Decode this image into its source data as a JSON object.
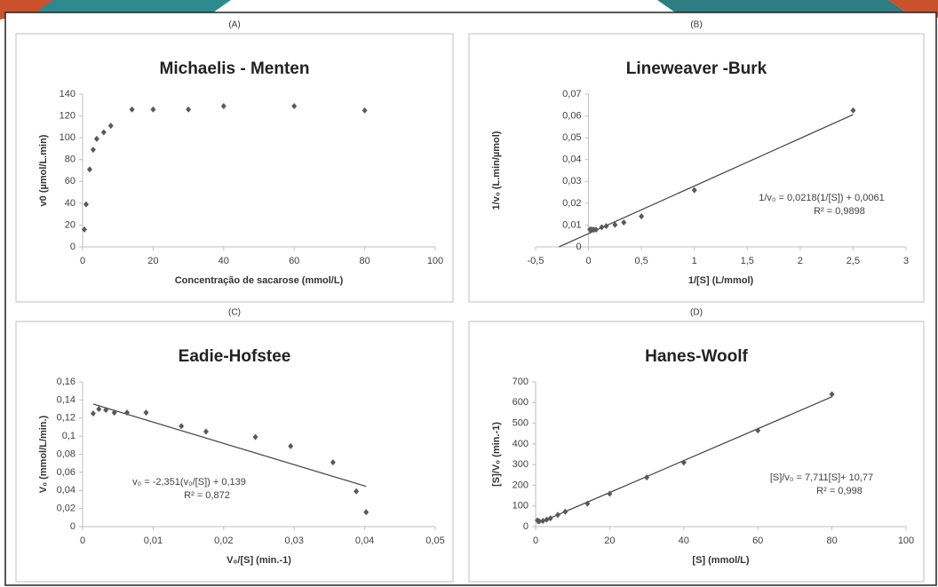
{
  "chart_data": [
    {
      "type": "scatter",
      "panel": "(A)",
      "title": "Michaelis - Menten",
      "x_label": "Concentração de sacarose (mmol/L)",
      "y_label": "v0 (µmol/L.min)",
      "x": [
        0.5,
        1,
        2,
        3,
        4,
        6,
        8,
        14,
        20,
        30,
        40,
        60,
        80
      ],
      "values": [
        16,
        39,
        71,
        89,
        99,
        105,
        111,
        126,
        126,
        126,
        129,
        129,
        125
      ],
      "color": "#595959",
      "xlim": [
        0,
        100
      ],
      "xticks": [
        0,
        20,
        40,
        60,
        80,
        100
      ],
      "ylim": [
        0,
        140
      ],
      "yticks": [
        0,
        20,
        40,
        60,
        80,
        100,
        120,
        140
      ]
    },
    {
      "type": "scatter",
      "panel": "(B)",
      "title": "Lineweaver -Burk",
      "x_label": "1/[S] (L/mmol)",
      "y_label": "1/v₀ (L.min/µmol)",
      "x": [
        2.5,
        1,
        0.5,
        0.333,
        0.25,
        0.167,
        0.125,
        0.071,
        0.05,
        0.033,
        0.025,
        0.0167,
        0.0125
      ],
      "values": [
        0.0625,
        0.026,
        0.014,
        0.0112,
        0.0101,
        0.0095,
        0.009,
        0.0079,
        0.0079,
        0.0079,
        0.0078,
        0.0078,
        0.008
      ],
      "color": "#595959",
      "trendline": {
        "slope": 0.0218,
        "intercept": 0.0061,
        "x_range": [
          -0.28,
          2.5
        ],
        "equation": "1/v₀ = 0,0218(1/[S]) + 0,0061",
        "r2": "R² = 0,9898"
      },
      "xlim": [
        -0.5,
        3
      ],
      "xticks": [
        {
          "value": -0.5,
          "label": "-0,5"
        },
        0,
        {
          "value": 0.5,
          "label": "0,5"
        },
        1,
        {
          "value": 1.5,
          "label": "1,5"
        },
        2,
        {
          "value": 2.5,
          "label": "2,5"
        },
        3
      ],
      "ylim": [
        0,
        0.07
      ],
      "yticks": [
        0,
        {
          "value": 0.01,
          "label": "0,01"
        },
        {
          "value": 0.02,
          "label": "0,02"
        },
        {
          "value": 0.03,
          "label": "0,03"
        },
        {
          "value": 0.04,
          "label": "0,04"
        },
        {
          "value": 0.05,
          "label": "0,05"
        },
        {
          "value": 0.06,
          "label": "0,06"
        },
        {
          "value": 0.07,
          "label": "0,07"
        }
      ]
    },
    {
      "type": "scatter",
      "panel": "(C)",
      "title": "Eadie-Hofstee",
      "x_label": "V₀/[S] (min.-1)",
      "y_label": "V₀ (mmol/L/min.)",
      "x": [
        0.0015,
        0.0023,
        0.0033,
        0.0045,
        0.0063,
        0.009,
        0.014,
        0.0175,
        0.0245,
        0.0295,
        0.0355,
        0.0388,
        0.0402
      ],
      "values": [
        0.125,
        0.13,
        0.129,
        0.126,
        0.126,
        0.126,
        0.111,
        0.105,
        0.099,
        0.089,
        0.071,
        0.039,
        0.016
      ],
      "color": "#595959",
      "trendline": {
        "slope": -2.351,
        "intercept": 0.139,
        "x_range": [
          0.0015,
          0.0402
        ],
        "equation": "v₀ = -2,351(v₀/[S]) + 0,139",
        "r2": "R² = 0,872"
      },
      "xlim": [
        0,
        0.05
      ],
      "xticks": [
        0,
        {
          "value": 0.01,
          "label": "0,01"
        },
        {
          "value": 0.02,
          "label": "0,02"
        },
        {
          "value": 0.03,
          "label": "0,03"
        },
        {
          "value": 0.04,
          "label": "0,04"
        },
        {
          "value": 0.05,
          "label": "0,05"
        }
      ],
      "ylim": [
        0,
        0.16
      ],
      "yticks": [
        0,
        {
          "value": 0.02,
          "label": "0,02"
        },
        {
          "value": 0.04,
          "label": "0,04"
        },
        {
          "value": 0.06,
          "label": "0,06"
        },
        {
          "value": 0.08,
          "label": "0,08"
        },
        {
          "value": 0.1,
          "label": "0,1"
        },
        {
          "value": 0.12,
          "label": "0,12"
        },
        {
          "value": 0.14,
          "label": "0,14"
        },
        {
          "value": 0.16,
          "label": "0,16"
        }
      ]
    },
    {
      "type": "scatter",
      "panel": "(D)",
      "title": "Hanes-Woolf",
      "x_label": "[S] (mmol/L)",
      "y_label": "[S]/V₀ (min.-1)",
      "x": [
        0.5,
        1,
        2,
        3,
        4,
        6,
        8,
        14,
        20,
        30,
        40,
        60,
        80
      ],
      "values": [
        30,
        26,
        28,
        34,
        40,
        57,
        72,
        111,
        159,
        238,
        310,
        465,
        640
      ],
      "color": "#595959",
      "trendline": {
        "slope": 7.711,
        "intercept": 10.77,
        "x_range": [
          0.5,
          80
        ],
        "equation": "[S]/v₀ = 7,711[S]+ 10,77",
        "r2": "R² = 0,998"
      },
      "xlim": [
        0,
        100
      ],
      "xticks": [
        0,
        20,
        40,
        60,
        80,
        100
      ],
      "ylim": [
        0,
        700
      ],
      "yticks": [
        0,
        100,
        200,
        300,
        400,
        500,
        600,
        700
      ]
    }
  ]
}
